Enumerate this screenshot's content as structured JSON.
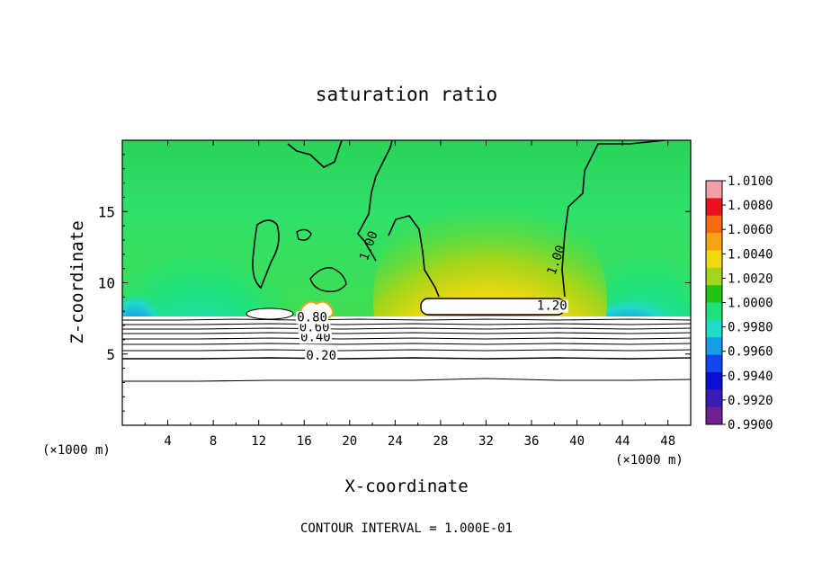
{
  "chart_data": {
    "type": "heatmap",
    "title": "saturation ratio",
    "xlabel": "X-coordinate",
    "ylabel": "Z-coordinate",
    "x_unit": "(×1000 m)",
    "x_ticks": [
      4,
      8,
      12,
      16,
      20,
      24,
      28,
      32,
      36,
      40,
      44,
      48
    ],
    "y_ticks": [
      5,
      10,
      15
    ],
    "xlim": [
      0,
      50
    ],
    "ylim": [
      0,
      20
    ],
    "footer": "CONTOUR INTERVAL = 1.000E-01",
    "contour_labels": [
      {
        "text": "0.20",
        "x": 17.5,
        "y": 4.6
      },
      {
        "text": "0.40",
        "x": 17.0,
        "y": 5.9
      },
      {
        "text": "0.60",
        "x": 16.9,
        "y": 6.6
      },
      {
        "text": "0.80",
        "x": 16.7,
        "y": 7.3
      },
      {
        "text": "1.20",
        "x": 37.8,
        "y": 8.1
      },
      {
        "text": "1.00",
        "x": 22.0,
        "y": 12.5
      },
      {
        "text": "1.00",
        "x": 38.5,
        "y": 11.5
      }
    ],
    "colorbar": {
      "ticks": [
        "1.0100",
        "1.0080",
        "1.0060",
        "1.0040",
        "1.0020",
        "1.0000",
        "0.9980",
        "0.9960",
        "0.9940",
        "0.9920",
        "0.9900"
      ],
      "colors": [
        "#f2a0a6",
        "#e8131f",
        "#f46a12",
        "#f6a313",
        "#efd90f",
        "#a3d51b",
        "#22c411",
        "#1fe27c",
        "#21dac8",
        "#169fe7",
        "#1046f0",
        "#0d0ed5",
        "#3a1cb3",
        "#6f2192"
      ],
      "min": 0.99,
      "max": 1.01
    }
  }
}
